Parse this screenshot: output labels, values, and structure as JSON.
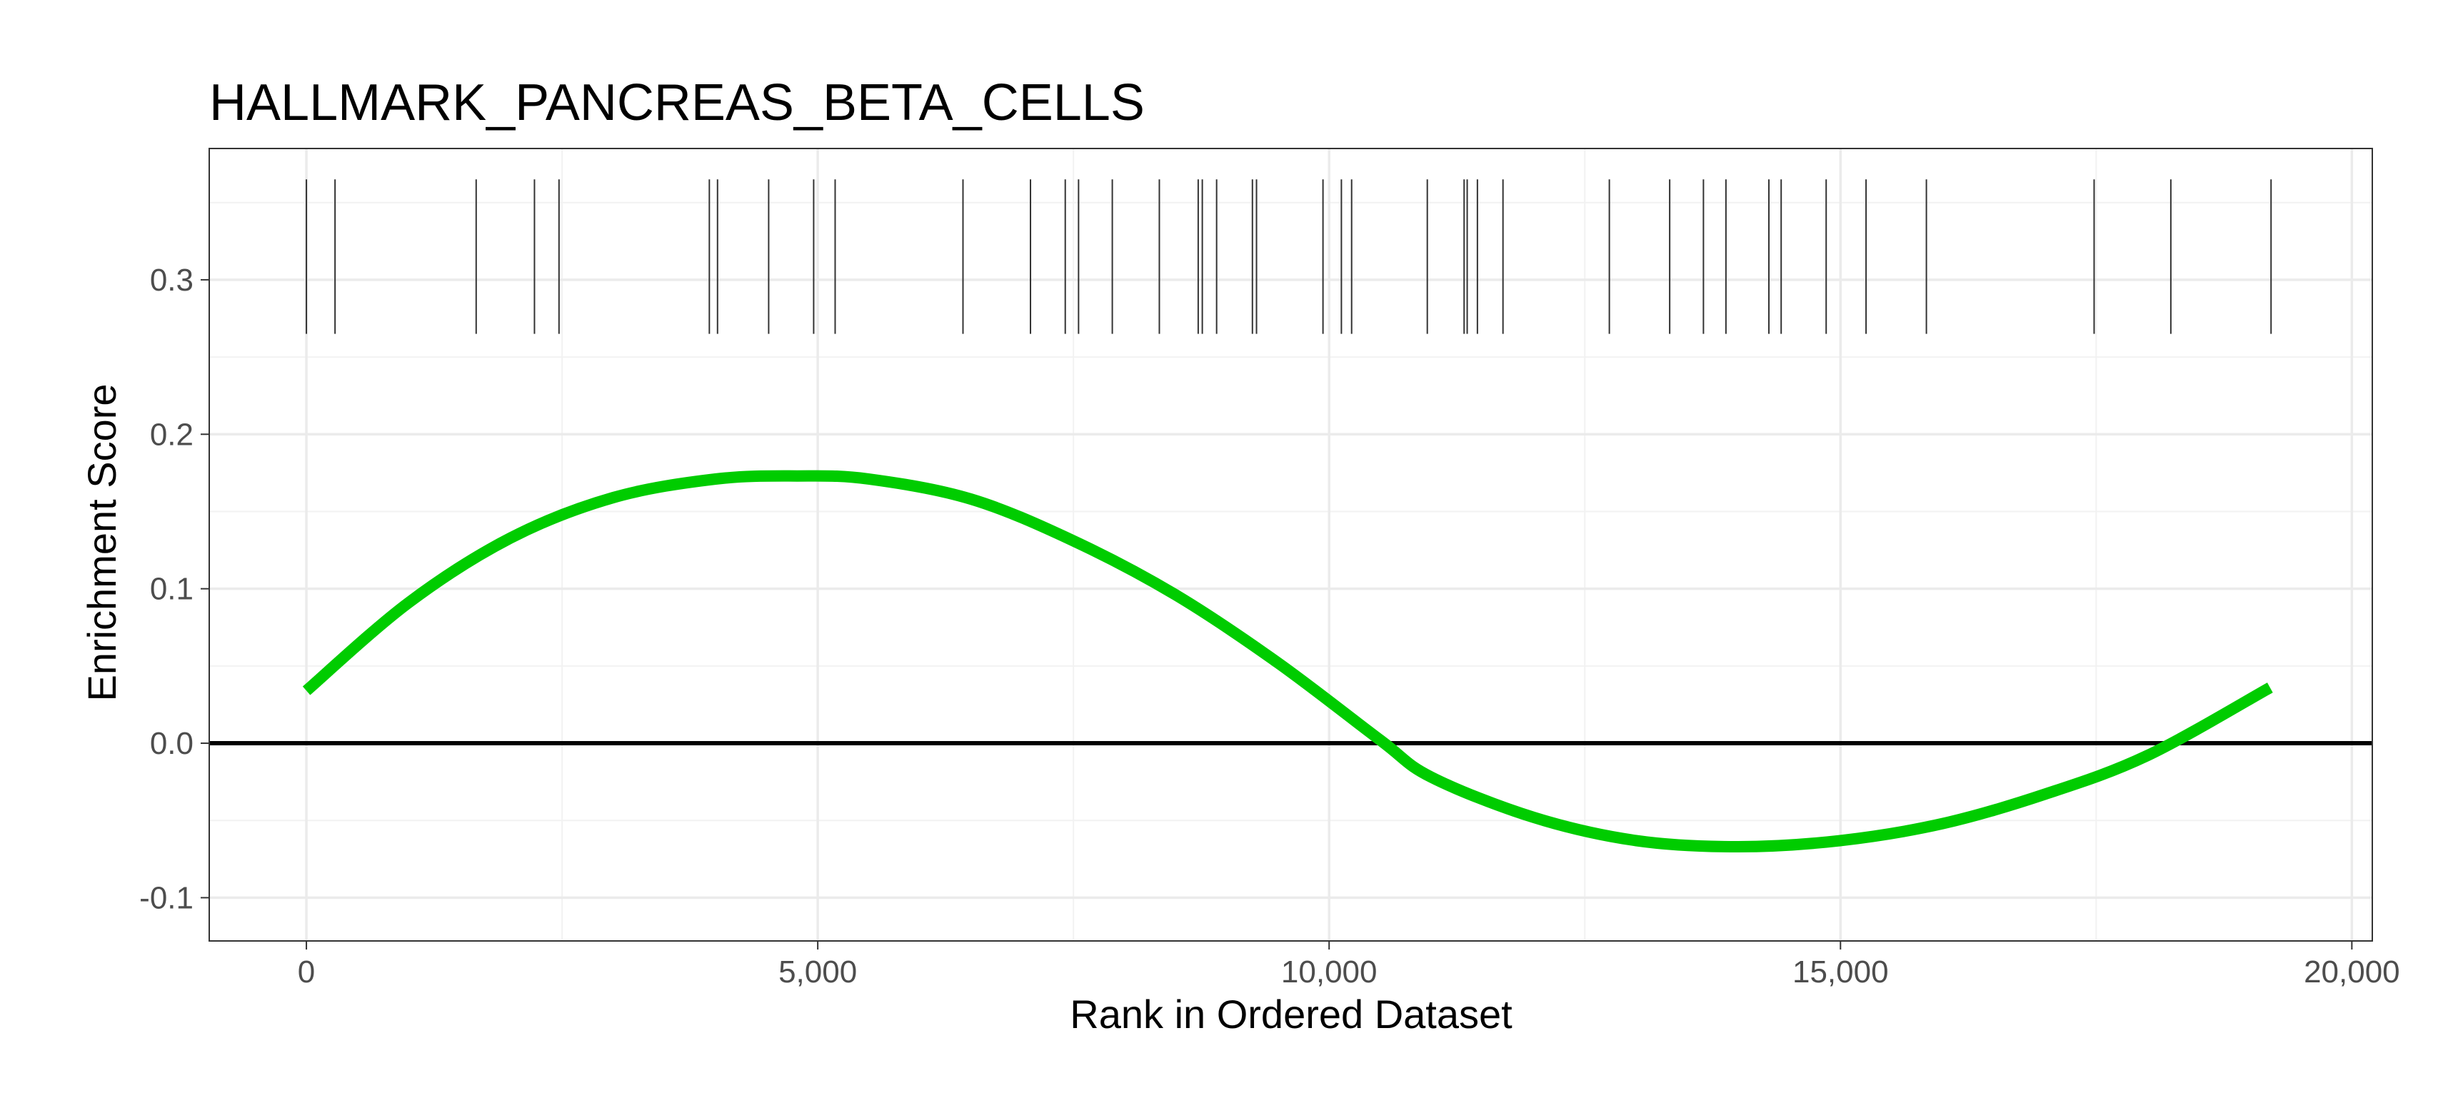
{
  "chart_data": {
    "type": "line",
    "title": "HALLMARK_PANCREAS_BETA_CELLS",
    "xlabel": "Rank in Ordered Dataset",
    "ylabel": "Enrichment Score",
    "xlim": [
      -950,
      20200
    ],
    "ylim": [
      -0.128,
      0.385
    ],
    "x_ticks": [
      0,
      5000,
      10000,
      15000,
      20000
    ],
    "x_tick_labels": [
      "0",
      "5,000",
      "10,000",
      "15,000",
      "20,000"
    ],
    "y_ticks": [
      -0.1,
      0.0,
      0.1,
      0.2,
      0.3
    ],
    "y_tick_labels": [
      "-0.1",
      "0.0",
      "0.1",
      "0.2",
      "0.3"
    ],
    "grid": true,
    "reference_line": 0.0,
    "series": [
      {
        "color": "#00cc00",
        "x": [
          0,
          1000,
          2000,
          3000,
          4000,
          4800,
          5500,
          6500,
          7500,
          8500,
          9500,
          10500,
          11000,
          12000,
          13000,
          14000,
          15000,
          16000,
          17000,
          18000,
          19200
        ],
        "y": [
          0.034,
          0.091,
          0.133,
          0.159,
          0.171,
          0.173,
          0.171,
          0.158,
          0.131,
          0.096,
          0.052,
          0.002,
          -0.022,
          -0.048,
          -0.063,
          -0.067,
          -0.063,
          -0.052,
          -0.033,
          -0.008,
          0.036
        ]
      }
    ],
    "hits": {
      "color": "#333333",
      "y_range": [
        0.265,
        0.365
      ],
      "positions": [
        0,
        280,
        1660,
        2230,
        2470,
        3940,
        4020,
        4520,
        4960,
        5170,
        6420,
        7080,
        7420,
        7550,
        7880,
        8340,
        8720,
        8760,
        8900,
        9250,
        9290,
        9940,
        10120,
        10220,
        10960,
        11320,
        11350,
        11450,
        11700,
        12740,
        13330,
        13660,
        13880,
        14300,
        14420,
        14860,
        15250,
        15840,
        17480,
        18230,
        19210
      ]
    }
  }
}
